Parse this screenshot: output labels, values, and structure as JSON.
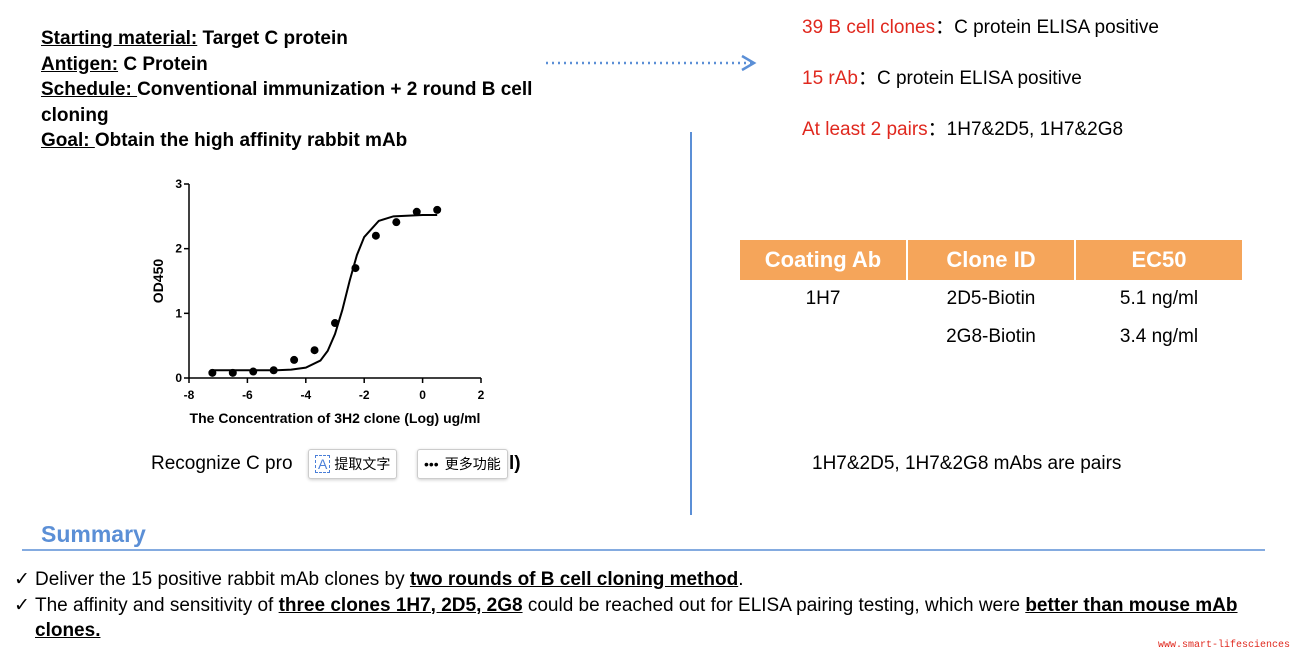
{
  "info": [
    {
      "label": "Starting material:",
      "text": " Target C protein"
    },
    {
      "label": "Antigen:",
      "text": " C Protein"
    },
    {
      "label": "Schedule: ",
      "text": "Conventional immunization + 2 round B cell cloning"
    },
    {
      "label": "Goal: ",
      "text": "Obtain the high affinity rabbit mAb"
    }
  ],
  "results": [
    {
      "highlight": "39 B cell clones",
      "text": "：C protein ELISA positive"
    },
    {
      "highlight": "15 rAb",
      "text": "：C protein ELISA positive"
    },
    {
      "highlight": "At least 2 pairs",
      "text": "：1H7&2D5, 1H7&2G8"
    }
  ],
  "chart_data": {
    "type": "scatter",
    "xlabel": "The Concentration of 3H2 clone (Log) ug/ml",
    "ylabel": "OD450",
    "x": [
      -7.2,
      -6.5,
      -5.8,
      -5.1,
      -4.4,
      -3.7,
      -3.0,
      -2.3,
      -1.6,
      -0.9,
      -0.2,
      0.5
    ],
    "values": [
      0.08,
      0.08,
      0.1,
      0.12,
      0.28,
      0.43,
      0.85,
      1.7,
      2.2,
      2.41,
      2.57,
      2.6
    ],
    "color": "#000000",
    "fit": {
      "x": [
        -7.2,
        -6,
        -5,
        -4.5,
        -4,
        -3.5,
        -3.25,
        -3,
        -2.75,
        -2.5,
        -2.25,
        -2,
        -1.5,
        -1,
        0,
        0.5
      ],
      "values": [
        0.12,
        0.12,
        0.12,
        0.13,
        0.16,
        0.27,
        0.42,
        0.68,
        1.05,
        1.5,
        1.9,
        2.18,
        2.43,
        2.5,
        2.52,
        2.52
      ]
    },
    "xlim": [
      -8,
      2
    ],
    "xticks": [
      -8,
      -6,
      -4,
      -2,
      0,
      2
    ],
    "ylim": [
      0,
      3
    ],
    "yticks": [
      0,
      1,
      2,
      3
    ]
  },
  "chart_caption": {
    "start": "Recognize C pro",
    "end": "l)"
  },
  "popup": [
    "提取文字",
    "更多功能"
  ],
  "table": {
    "headers": [
      "Coating Ab",
      "Clone ID",
      "EC50"
    ],
    "rows": [
      {
        "coating": "1H7",
        "clone": "2D5-Biotin",
        "ec50": "5.1 ng/ml"
      },
      {
        "clone": "2G8-Biotin",
        "ec50": "3.4 ng/ml"
      }
    ]
  },
  "table_caption": "1H7&2D5, 1H7&2G8 mAbs are pairs",
  "summary": {
    "title": "Summary",
    "marker": "✓",
    "bullets": [
      [
        {
          "text": "Deliver the 15 positive rabbit mAb clones by "
        },
        {
          "text": "two rounds of B cell cloning method",
          "bold": true
        },
        {
          "text": "."
        }
      ],
      [
        {
          "text": "The affinity and sensitivity of "
        },
        {
          "text": "three clones 1H7, 2D5, 2G8",
          "bold": true
        },
        {
          "text": " could be reached out for ELISA pairing testing, which were "
        },
        {
          "text": "better than mouse mAb clones.",
          "bold": true
        }
      ]
    ]
  },
  "watermark": "www.smart-lifesciences"
}
